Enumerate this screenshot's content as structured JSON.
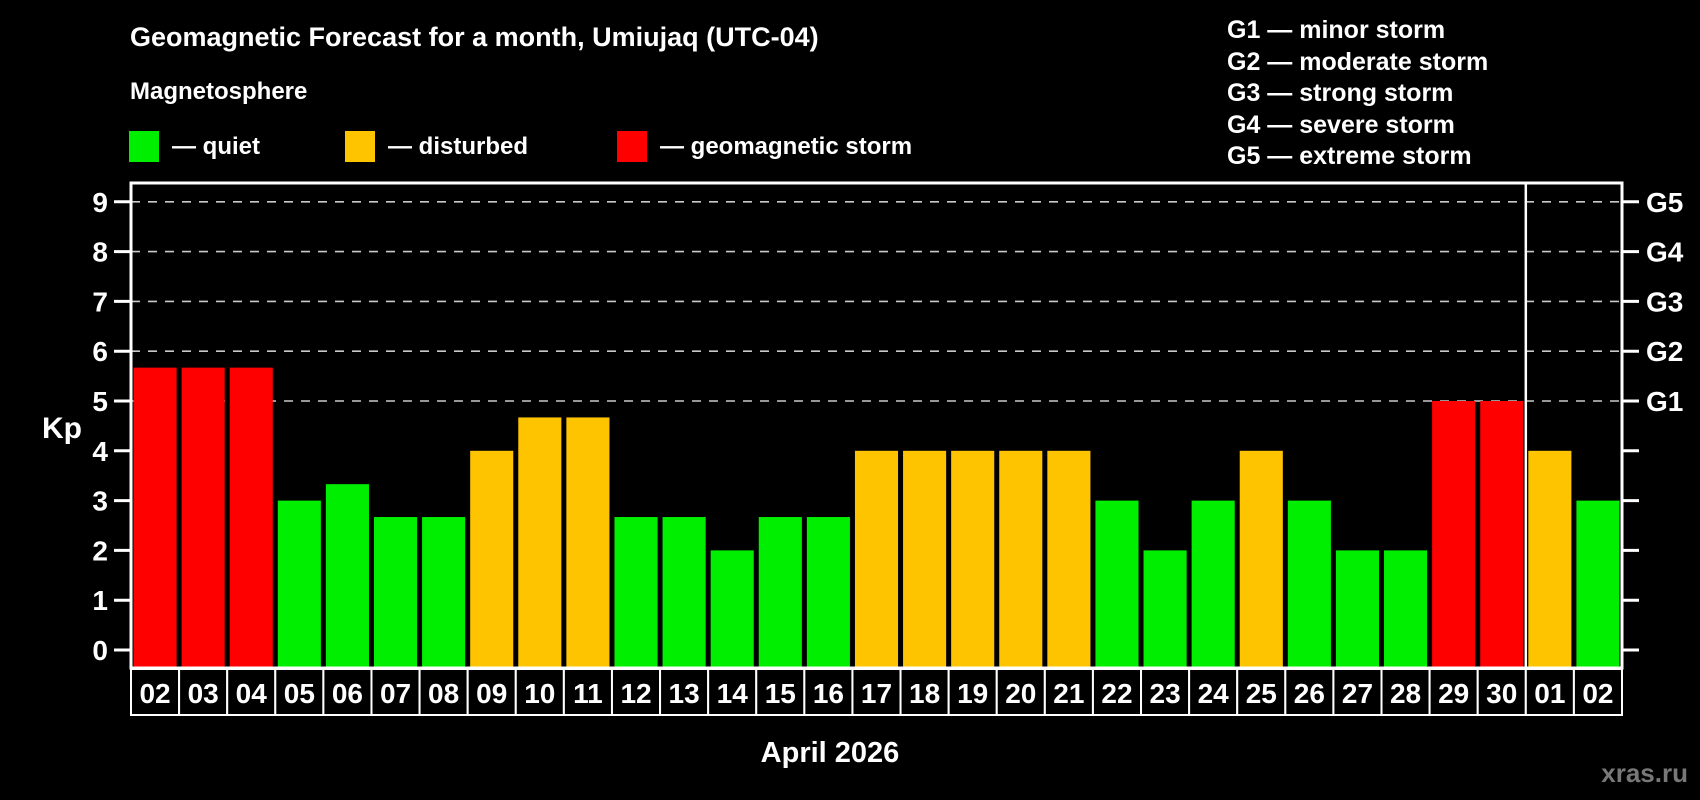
{
  "header": {
    "title": "Geomagnetic Forecast for a month, Umiujaq (UTC-04)",
    "subtitle": "Magnetosphere",
    "legend": [
      {
        "key": "quiet",
        "label": "— quiet",
        "color": "#00ee00"
      },
      {
        "key": "disturbed",
        "label": "— disturbed",
        "color": "#ffc400"
      },
      {
        "key": "storm",
        "label": "— geomagnetic storm",
        "color": "#ff0000"
      }
    ],
    "g_scale_legend": [
      "G1 — minor storm",
      "G2 — moderate storm",
      "G3 — strong storm",
      "G4 — severe storm",
      "G5 — extreme storm"
    ]
  },
  "chart_data": {
    "type": "bar",
    "title": "Geomagnetic Forecast for a month, Umiujaq (UTC-04)",
    "ylabel": "Kp",
    "xlabel": "April 2026",
    "ylim": [
      0,
      9
    ],
    "yticks": [
      0,
      1,
      2,
      3,
      4,
      5,
      6,
      7,
      8,
      9
    ],
    "gridlines_at": [
      5,
      6,
      7,
      8,
      9
    ],
    "grid": "dashed, G-levels only",
    "legend_position": "top-left",
    "right_axis_labels": [
      {
        "kp": 5,
        "label": "G1"
      },
      {
        "kp": 6,
        "label": "G2"
      },
      {
        "kp": 7,
        "label": "G3"
      },
      {
        "kp": 8,
        "label": "G4"
      },
      {
        "kp": 9,
        "label": "G5"
      }
    ],
    "palette": {
      "quiet": "#00ee00",
      "disturbed": "#ffc400",
      "storm": "#ff0000"
    },
    "categories": [
      "02",
      "03",
      "04",
      "05",
      "06",
      "07",
      "08",
      "09",
      "10",
      "11",
      "12",
      "13",
      "14",
      "15",
      "16",
      "17",
      "18",
      "19",
      "20",
      "21",
      "22",
      "23",
      "24",
      "25",
      "26",
      "27",
      "28",
      "29",
      "30",
      "01",
      "02"
    ],
    "values": [
      5.67,
      5.67,
      5.67,
      3,
      3.33,
      2.67,
      2.67,
      4,
      4.67,
      4.67,
      2.67,
      2.67,
      2,
      2.67,
      2.67,
      4,
      4,
      4,
      4,
      4,
      3,
      2,
      3,
      4,
      3,
      2,
      2,
      5,
      5,
      4,
      3
    ],
    "statuses": [
      "storm",
      "storm",
      "storm",
      "quiet",
      "quiet",
      "quiet",
      "quiet",
      "disturbed",
      "disturbed",
      "disturbed",
      "quiet",
      "quiet",
      "quiet",
      "quiet",
      "quiet",
      "disturbed",
      "disturbed",
      "disturbed",
      "disturbed",
      "disturbed",
      "quiet",
      "quiet",
      "quiet",
      "disturbed",
      "quiet",
      "quiet",
      "quiet",
      "storm",
      "storm",
      "disturbed",
      "quiet"
    ],
    "month_separator_after_index": 28
  },
  "footer": {
    "month_label": "April 2026",
    "watermark": "xras.ru"
  }
}
